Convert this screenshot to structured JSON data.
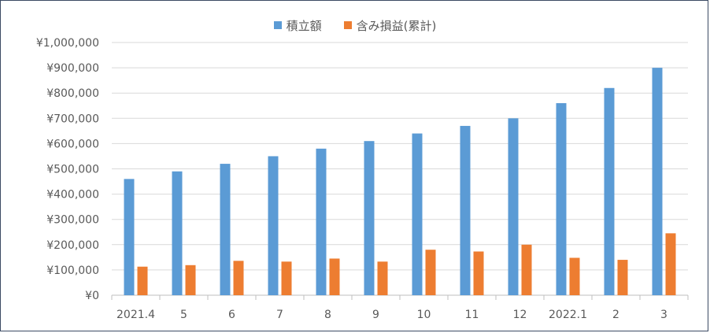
{
  "chart_data": {
    "type": "bar",
    "categories": [
      "2021.4",
      "5",
      "6",
      "7",
      "8",
      "9",
      "10",
      "11",
      "12",
      "2022.1",
      "2",
      "3"
    ],
    "series": [
      {
        "name": "積立額",
        "color": "#5b9bd5",
        "values": [
          460000,
          490000,
          520000,
          550000,
          580000,
          610000,
          640000,
          670000,
          700000,
          760000,
          820000,
          900000
        ]
      },
      {
        "name": "含み損益(累計)",
        "color": "#ed7d31",
        "values": [
          113000,
          119000,
          136000,
          133000,
          145000,
          133000,
          180000,
          173000,
          200000,
          148000,
          140000,
          245000
        ]
      }
    ],
    "ylim": [
      0,
      1000000
    ],
    "yticks": [
      "¥0",
      "¥100,000",
      "¥200,000",
      "¥300,000",
      "¥400,000",
      "¥500,000",
      "¥600,000",
      "¥700,000",
      "¥800,000",
      "¥900,000",
      "¥1,000,000"
    ],
    "grid": true,
    "legend_position": "top-center"
  }
}
